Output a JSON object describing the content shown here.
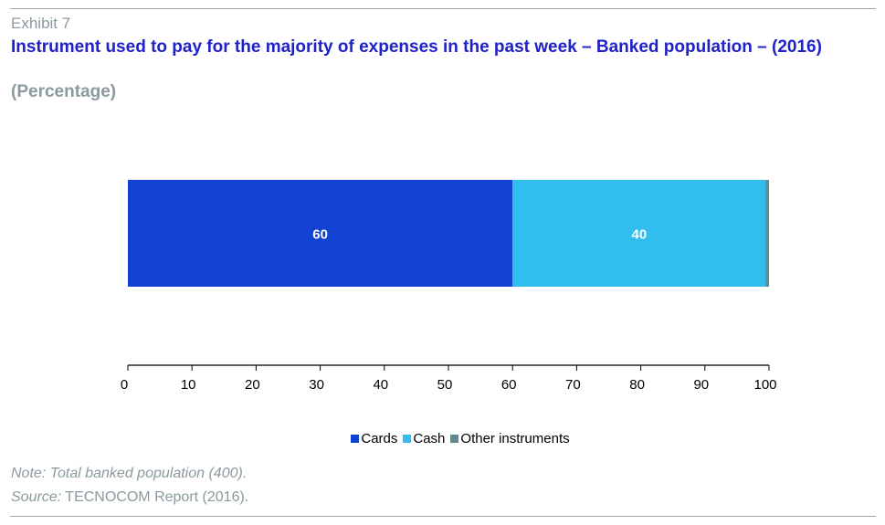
{
  "header": {
    "exhibit": "Exhibit 7",
    "title": "Instrument used to pay for the majority of expenses in the past week – Banked population – (2016)",
    "subtitle": "(Percentage)"
  },
  "footer": {
    "note": "Note: Total banked population (400).",
    "source_label": "Source:",
    "source_text": " TECNOCOM Report (2016)."
  },
  "chart_data": {
    "type": "bar",
    "orientation": "horizontal",
    "stacked": true,
    "categories": [
      ""
    ],
    "series": [
      {
        "name": "Cards",
        "values": [
          60
        ],
        "color": "#1242d2",
        "label": "60"
      },
      {
        "name": "Cash",
        "values": [
          39.5
        ],
        "color": "#32bdef",
        "label": "40"
      },
      {
        "name": "Other instruments",
        "values": [
          0.5
        ],
        "color": "#5f8b91",
        "label": ""
      }
    ],
    "xlim": [
      0,
      100
    ],
    "xticks": [
      0,
      10,
      20,
      30,
      40,
      50,
      60,
      70,
      80,
      90,
      100
    ],
    "grid": false,
    "legend": "bottom-center",
    "label_color": "#ffffff"
  }
}
